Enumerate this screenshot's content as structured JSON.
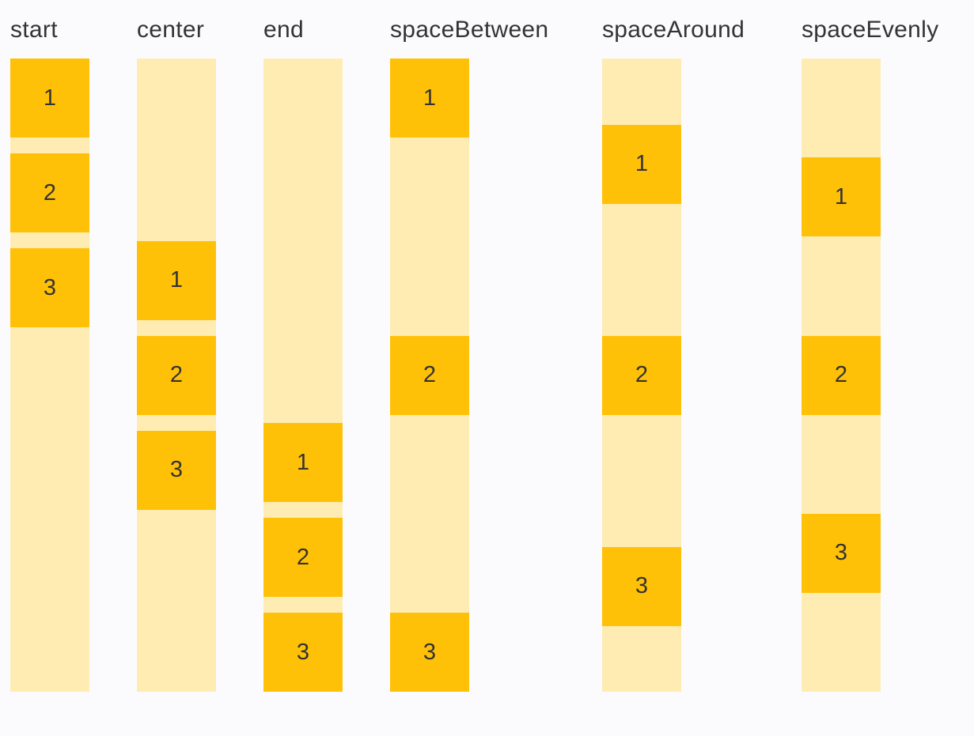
{
  "page": {
    "background": "#FBFBFE"
  },
  "colors": {
    "track": "#FFECB3",
    "box": "#FFC107",
    "text": "#333333"
  },
  "columns": [
    {
      "label": "start",
      "justify": "flex-start",
      "packed": true,
      "items": [
        "1",
        "2",
        "3"
      ]
    },
    {
      "label": "center",
      "justify": "center",
      "packed": true,
      "items": [
        "1",
        "2",
        "3"
      ]
    },
    {
      "label": "end",
      "justify": "flex-end",
      "packed": true,
      "items": [
        "1",
        "2",
        "3"
      ]
    },
    {
      "label": "spaceBetween",
      "justify": "space-between",
      "packed": false,
      "items": [
        "1",
        "2",
        "3"
      ]
    },
    {
      "label": "spaceAround",
      "justify": "space-around",
      "packed": false,
      "items": [
        "1",
        "2",
        "3"
      ]
    },
    {
      "label": "spaceEvenly",
      "justify": "space-evenly",
      "packed": false,
      "items": [
        "1",
        "2",
        "3"
      ]
    }
  ]
}
